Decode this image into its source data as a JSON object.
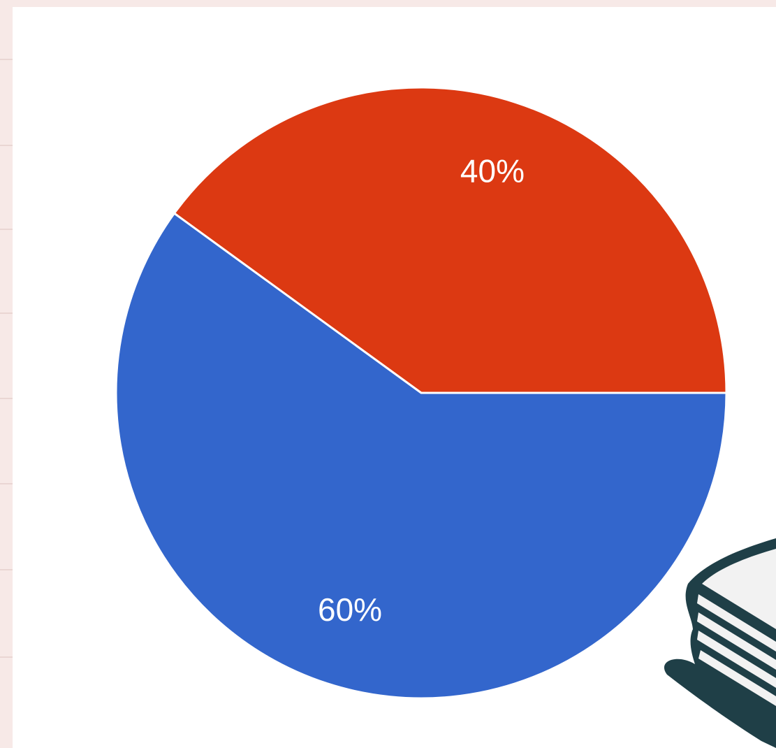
{
  "chart_data": {
    "type": "pie",
    "categories": [
      null,
      null
    ],
    "values": [
      40,
      60
    ],
    "value_labels": [
      "40%",
      "60%"
    ],
    "colors": [
      "#dc3912",
      "#3366cc"
    ]
  }
}
